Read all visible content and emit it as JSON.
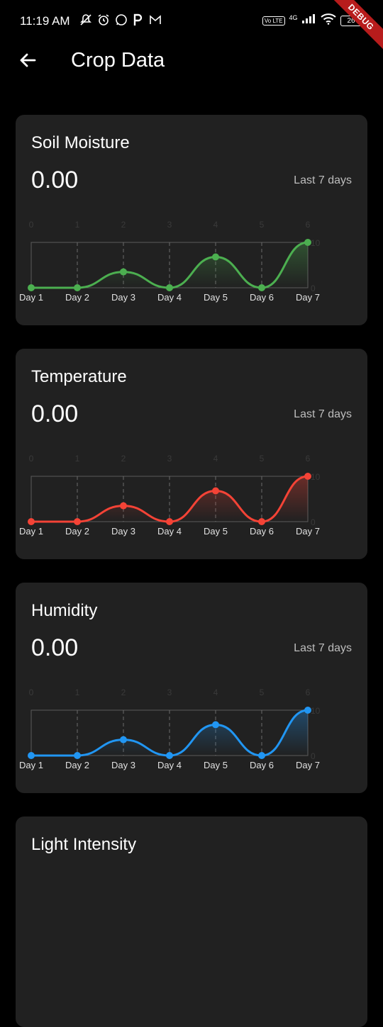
{
  "status_bar": {
    "time": "11:19 AM",
    "network": "4G",
    "volte": "Vo LTE",
    "battery": "26",
    "debug_banner": "DEBUG",
    "icons_left": [
      "muted-notifications-icon",
      "alarm-icon",
      "whatsapp-icon",
      "p-app-icon",
      "gmail-icon"
    ],
    "icons_right": [
      "volte-icon",
      "signal-icon",
      "wifi-icon",
      "battery-icon"
    ]
  },
  "app_bar": {
    "title": "Crop Data",
    "back_icon": "arrow-left-icon"
  },
  "cards": [
    {
      "title": "Soil Moisture",
      "value": "0.00",
      "period": "Last 7 days",
      "color": "#4caf50"
    },
    {
      "title": "Temperature",
      "value": "0.00",
      "period": "Last 7 days",
      "color": "#f44336"
    },
    {
      "title": "Humidity",
      "value": "0.00",
      "period": "Last 7 days",
      "color": "#2196f3"
    },
    {
      "title": "Light Intensity",
      "value": "",
      "period": "",
      "color": "#ffc107"
    }
  ],
  "chart_data": [
    {
      "type": "line",
      "categories": [
        "Day 1",
        "Day 2",
        "Day 3",
        "Day 4",
        "Day 5",
        "Day 6",
        "Day 7"
      ],
      "top_axis_ticks": [
        "0",
        "1",
        "2",
        "3",
        "4",
        "5",
        "6"
      ],
      "right_axis_ticks": [
        "10",
        "0"
      ],
      "series": [
        {
          "values": [
            0,
            0,
            3.5,
            0,
            6.8,
            0,
            10
          ]
        }
      ],
      "ylim": [
        0,
        10
      ],
      "color": "#4caf50",
      "grid": "vertical dashed"
    },
    {
      "type": "line",
      "categories": [
        "Day 1",
        "Day 2",
        "Day 3",
        "Day 4",
        "Day 5",
        "Day 6",
        "Day 7"
      ],
      "top_axis_ticks": [
        "0",
        "1",
        "2",
        "3",
        "4",
        "5",
        "6"
      ],
      "right_axis_ticks": [
        "10",
        "0"
      ],
      "series": [
        {
          "values": [
            0,
            0,
            3.5,
            0,
            6.8,
            0,
            10
          ]
        }
      ],
      "ylim": [
        0,
        10
      ],
      "color": "#f44336",
      "grid": "vertical dashed"
    },
    {
      "type": "line",
      "categories": [
        "Day 1",
        "Day 2",
        "Day 3",
        "Day 4",
        "Day 5",
        "Day 6",
        "Day 7"
      ],
      "top_axis_ticks": [
        "0",
        "1",
        "2",
        "3",
        "4",
        "5",
        "6"
      ],
      "right_axis_ticks": [
        "10",
        "0"
      ],
      "series": [
        {
          "values": [
            0,
            0,
            3.5,
            0,
            6.8,
            0,
            10
          ]
        }
      ],
      "ylim": [
        0,
        10
      ],
      "color": "#2196f3",
      "grid": "vertical dashed"
    }
  ]
}
